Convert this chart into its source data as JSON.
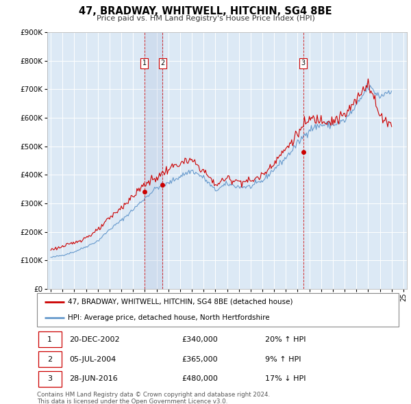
{
  "title": "47, BRADWAY, WHITWELL, HITCHIN, SG4 8BE",
  "subtitle": "Price paid vs. HM Land Registry's House Price Index (HPI)",
  "sale_color": "#cc0000",
  "hpi_color": "#6699cc",
  "vline_color": "#cc0000",
  "background_color": "#ffffff",
  "chart_bg": "#dce9f5",
  "grid_color": "#ffffff",
  "ylim": [
    0,
    900000
  ],
  "yticks": [
    0,
    100000,
    200000,
    300000,
    400000,
    500000,
    600000,
    700000,
    800000,
    900000
  ],
  "ytick_labels": [
    "£0",
    "£100K",
    "£200K",
    "£300K",
    "£400K",
    "£500K",
    "£600K",
    "£700K",
    "£800K",
    "£900K"
  ],
  "transactions": [
    {
      "label": "1",
      "date_num": 2002.97,
      "price": 340000,
      "note": "20% ↑ HPI",
      "date_str": "20-DEC-2002"
    },
    {
      "label": "2",
      "date_num": 2004.51,
      "price": 365000,
      "note": "9% ↑ HPI",
      "date_str": "05-JUL-2004"
    },
    {
      "label": "3",
      "date_num": 2016.49,
      "price": 480000,
      "note": "17% ↓ HPI",
      "date_str": "28-JUN-2016"
    }
  ],
  "legend_sale": "47, BRADWAY, WHITWELL, HITCHIN, SG4 8BE (detached house)",
  "legend_hpi": "HPI: Average price, detached house, North Hertfordshire",
  "footer1": "Contains HM Land Registry data © Crown copyright and database right 2024.",
  "footer2": "This data is licensed under the Open Government Licence v3.0."
}
